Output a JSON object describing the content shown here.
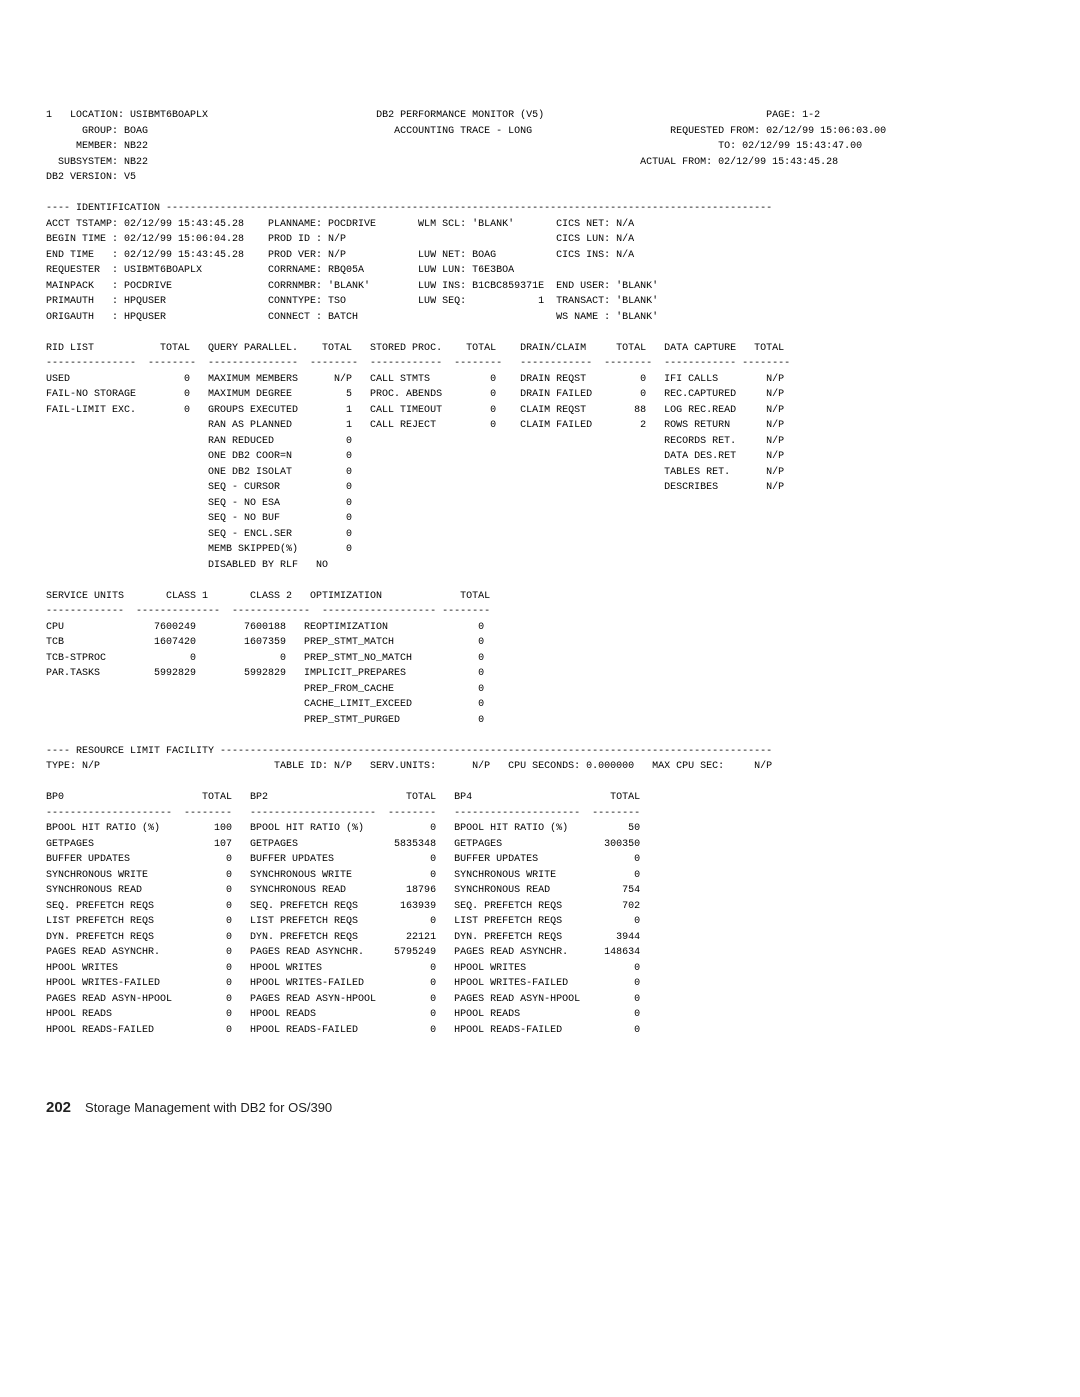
{
  "header": {
    "line1": {
      "left": "1   LOCATION: USIBMT6BOAPLX",
      "center": "DB2 PERFORMANCE MONITOR (V5)",
      "right": "PAGE: 1-2"
    },
    "line2": {
      "left": "      GROUP: BOAG",
      "center": "ACCOUNTING TRACE - LONG",
      "right": "REQUESTED FROM: 02/12/99 15:06:03.00"
    },
    "line3": {
      "left": "     MEMBER: NB22",
      "right": "TO: 02/12/99 15:43:47.00"
    },
    "line4": {
      "left": "  SUBSYSTEM: NB22",
      "right": "ACTUAL FROM: 02/12/99 15:43:45.28"
    },
    "line5": "DB2 VERSION: V5"
  },
  "identification": {
    "title": "---- IDENTIFICATION -----------------------------------------------------------------------------------------------------",
    "rows": [
      "ACCT TSTAMP: 02/12/99 15:43:45.28    PLANNAME: POCDRIVE       WLM SCL: 'BLANK'       CICS NET: N/A",
      "BEGIN TIME : 02/12/99 15:06:04.28    PROD ID : N/P                                   CICS LUN: N/A",
      "END TIME   : 02/12/99 15:43:45.28    PROD VER: N/P            LUW NET: BOAG          CICS INS: N/A",
      "REQUESTER  : USIBMT6BOAPLX           CORRNAME: RBQ05A         LUW LUN: T6E3BOA",
      "MAINPACK   : POCDRIVE                CORRNMBR: 'BLANK'        LUW INS: B1CBC859371E  END USER: 'BLANK'",
      "PRIMAUTH   : HPQUSER                 CONNTYPE: TSO            LUW SEQ:            1  TRANSACT: 'BLANK'",
      "ORIGAUTH   : HPQUSER                 CONNECT : BATCH                                 WS NAME : 'BLANK'"
    ]
  },
  "mainTable": {
    "header": "RID LIST           TOTAL   QUERY PARALLEL.    TOTAL   STORED PROC.    TOTAL    DRAIN/CLAIM     TOTAL   DATA CAPTURE   TOTAL",
    "sep": "---------------  --------  ---------------  --------  ------------  --------   ------------  --------  ------------ --------",
    "rows": [
      "USED                   0   MAXIMUM MEMBERS      N/P   CALL STMTS          0    DRAIN REQST         0   IFI CALLS        N/P",
      "FAIL-NO STORAGE        0   MAXIMUM DEGREE         5   PROC. ABENDS        0    DRAIN FAILED        0   REC.CAPTURED     N/P",
      "FAIL-LIMIT EXC.        0   GROUPS EXECUTED        1   CALL TIMEOUT        0    CLAIM REQST        88   LOG REC.READ     N/P",
      "                           RAN AS PLANNED         1   CALL REJECT         0    CLAIM FAILED        2   ROWS RETURN      N/P",
      "                           RAN REDUCED            0                                                    RECORDS RET.     N/P",
      "                           ONE DB2 COOR=N         0                                                    DATA DES.RET     N/P",
      "                           ONE DB2 ISOLAT         0                                                    TABLES RET.      N/P",
      "                           SEQ - CURSOR           0                                                    DESCRIBES        N/P",
      "                           SEQ - NO ESA           0",
      "                           SEQ - NO BUF           0",
      "                           SEQ - ENCL.SER         0",
      "                           MEMB SKIPPED(%)        0",
      "                           DISABLED BY RLF   NO"
    ]
  },
  "serviceUnits": {
    "header": "SERVICE UNITS       CLASS 1       CLASS 2   OPTIMIZATION             TOTAL",
    "sep": "-------------  --------------  -------------  ------------------- --------",
    "rows": [
      "CPU               7600249        7600188   REOPTIMIZATION               0",
      "TCB               1607420        1607359   PREP_STMT_MATCH              0",
      "TCB-STPROC              0              0   PREP_STMT_NO_MATCH           0",
      "PAR.TASKS         5992829        5992829   IMPLICIT_PREPARES            0",
      "                                           PREP_FROM_CACHE              0",
      "                                           CACHE_LIMIT_EXCEED           0",
      "                                           PREP_STMT_PURGED             0"
    ]
  },
  "rlf": {
    "title": "---- RESOURCE LIMIT FACILITY --------------------------------------------------------------------------------------------",
    "line": "TYPE: N/P                             TABLE ID: N/P   SERV.UNITS:      N/P   CPU SECONDS: 0.000000   MAX CPU SEC:     N/P"
  },
  "bufferPools": {
    "header": "BP0                       TOTAL   BP2                       TOTAL   BP4                       TOTAL",
    "sep": "---------------------  --------   ---------------------  --------   ---------------------  --------",
    "rows": [
      "BPOOL HIT RATIO (%)         100   BPOOL HIT RATIO (%)           0   BPOOL HIT RATIO (%)          50",
      "GETPAGES                    107   GETPAGES                5835348   GETPAGES                 300350",
      "BUFFER UPDATES                0   BUFFER UPDATES                0   BUFFER UPDATES                0",
      "SYNCHRONOUS WRITE             0   SYNCHRONOUS WRITE             0   SYNCHRONOUS WRITE             0",
      "SYNCHRONOUS READ              0   SYNCHRONOUS READ          18796   SYNCHRONOUS READ            754",
      "SEQ. PREFETCH REQS            0   SEQ. PREFETCH REQS       163939   SEQ. PREFETCH REQS          702",
      "LIST PREFETCH REQS            0   LIST PREFETCH REQS            0   LIST PREFETCH REQS            0",
      "DYN. PREFETCH REQS            0   DYN. PREFETCH REQS        22121   DYN. PREFETCH REQS         3944",
      "PAGES READ ASYNCHR.           0   PAGES READ ASYNCHR.     5795249   PAGES READ ASYNCHR.      148634",
      "HPOOL WRITES                  0   HPOOL WRITES                  0   HPOOL WRITES                  0",
      "HPOOL WRITES-FAILED           0   HPOOL WRITES-FAILED           0   HPOOL WRITES-FAILED           0",
      "PAGES READ ASYN-HPOOL         0   PAGES READ ASYN-HPOOL         0   PAGES READ ASYN-HPOOL         0",
      "HPOOL READS                   0   HPOOL READS                   0   HPOOL READS                   0",
      "HPOOL READS-FAILED            0   HPOOL READS-FAILED            0   HPOOL READS-FAILED            0"
    ]
  },
  "footer": {
    "page": "202",
    "title": "Storage Management with DB2 for OS/390"
  }
}
